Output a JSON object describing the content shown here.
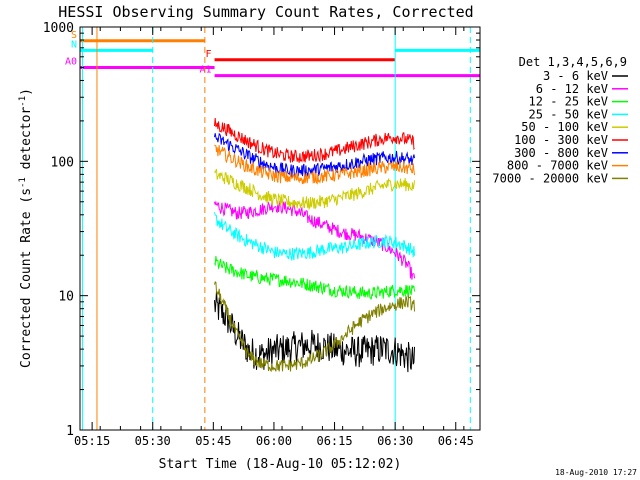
{
  "chart_data": {
    "type": "line",
    "title": "HESSI Observing Summary Count Rates, Corrected",
    "xlabel": "Start Time (18-Aug-10 05:12:02)",
    "ylabel_main": "Corrected Count Rate (s",
    "ylabel_sup1": "-1",
    "ylabel_mid": " detector",
    "ylabel_sup2": "-1",
    "ylabel_end": ")",
    "y_scale": "log",
    "ylim": [
      1,
      1000
    ],
    "xlim": [
      5.2,
      6.85
    ],
    "x_tick_labels": [
      "05:15",
      "05:30",
      "05:45",
      "06:00",
      "06:15",
      "06:30",
      "06:45"
    ],
    "x_ticks": [
      5.25,
      5.5,
      5.75,
      6.0,
      6.25,
      6.5,
      6.75
    ],
    "y_tick_labels": [
      "1",
      "10",
      "100",
      "1000"
    ],
    "y_ticks": [
      1,
      10,
      100,
      1000
    ],
    "legend_title": "Det 1,3,4,5,6,9",
    "legend_placement": "right",
    "timestamp": "18-Aug-2010 17:27",
    "series": [
      {
        "name": "3 - 6 keV",
        "color": "#000000",
        "x": [
          5.755,
          5.8,
          5.85,
          5.9,
          5.95,
          6.0,
          6.05,
          6.1,
          6.15,
          6.2,
          6.25,
          6.3,
          6.35,
          6.4,
          6.45,
          6.5,
          6.55,
          6.58
        ],
        "y": [
          8.5,
          7,
          5,
          3.8,
          3.6,
          3.9,
          4,
          4.2,
          4.3,
          4.2,
          4,
          3.9,
          3.8,
          3.9,
          4,
          3.9,
          3.5,
          3.2
        ]
      },
      {
        "name": "6 - 12 keV",
        "color": "#ff00ff",
        "x": [
          5.755,
          5.8,
          5.85,
          5.9,
          5.95,
          6.0,
          6.05,
          6.1,
          6.15,
          6.2,
          6.25,
          6.3,
          6.35,
          6.4,
          6.45,
          6.5,
          6.55,
          6.58
        ],
        "y": [
          48,
          44,
          41,
          42,
          44,
          47,
          45,
          42,
          37,
          34,
          31,
          29,
          28,
          26,
          24,
          21,
          17,
          13
        ]
      },
      {
        "name": "12 - 25 keV",
        "color": "#00ff00",
        "x": [
          5.755,
          5.8,
          5.85,
          5.9,
          5.95,
          6.0,
          6.05,
          6.1,
          6.15,
          6.2,
          6.25,
          6.3,
          6.35,
          6.4,
          6.45,
          6.5,
          6.55,
          6.58
        ],
        "y": [
          18,
          16,
          15,
          14,
          13.5,
          13.2,
          13,
          12.5,
          12,
          11.5,
          11,
          10.8,
          10.5,
          10.4,
          10.6,
          11,
          11,
          10.5
        ]
      },
      {
        "name": "25 - 50 keV",
        "color": "#00ffff",
        "x": [
          5.755,
          5.8,
          5.85,
          5.9,
          5.95,
          6.0,
          6.05,
          6.1,
          6.15,
          6.2,
          6.25,
          6.3,
          6.35,
          6.4,
          6.45,
          6.5,
          6.55,
          6.58
        ],
        "y": [
          38,
          32,
          28,
          25,
          23,
          21,
          20.5,
          20.5,
          21,
          22,
          22.5,
          23,
          24,
          25,
          25.5,
          25,
          23,
          21
        ]
      },
      {
        "name": "50 - 100 keV",
        "color": "#cccc00",
        "x": [
          5.755,
          5.8,
          5.85,
          5.9,
          5.95,
          6.0,
          6.05,
          6.1,
          6.15,
          6.2,
          6.25,
          6.3,
          6.35,
          6.4,
          6.45,
          6.5,
          6.55,
          6.58
        ],
        "y": [
          80,
          75,
          68,
          62,
          56,
          52,
          50,
          49,
          49,
          50,
          52,
          55,
          58,
          62,
          66,
          68,
          67,
          65
        ]
      },
      {
        "name": "100 - 300 keV",
        "color": "#ff0000",
        "x": [
          5.755,
          5.8,
          5.85,
          5.9,
          5.95,
          6.0,
          6.05,
          6.1,
          6.15,
          6.2,
          6.25,
          6.3,
          6.35,
          6.4,
          6.45,
          6.5,
          6.55,
          6.58
        ],
        "y": [
          190,
          175,
          155,
          138,
          125,
          115,
          110,
          108,
          110,
          113,
          118,
          125,
          133,
          140,
          148,
          152,
          145,
          138
        ]
      },
      {
        "name": "300 - 800 keV",
        "color": "#0000ff",
        "x": [
          5.755,
          5.8,
          5.85,
          5.9,
          5.95,
          6.0,
          6.05,
          6.1,
          6.15,
          6.2,
          6.25,
          6.3,
          6.35,
          6.4,
          6.45,
          6.5,
          6.55,
          6.58
        ],
        "y": [
          150,
          138,
          122,
          108,
          98,
          90,
          86,
          85,
          86,
          88,
          91,
          95,
          99,
          103,
          106,
          107,
          104,
          100
        ]
      },
      {
        "name": "800 - 7000 keV",
        "color": "#ff8000",
        "x": [
          5.755,
          5.8,
          5.85,
          5.9,
          5.95,
          6.0,
          6.05,
          6.1,
          6.15,
          6.2,
          6.25,
          6.3,
          6.35,
          6.4,
          6.45,
          6.5,
          6.55,
          6.58
        ],
        "y": [
          125,
          112,
          100,
          90,
          83,
          78,
          76,
          75,
          76,
          77,
          79,
          81,
          84,
          87,
          90,
          91,
          89,
          86
        ]
      },
      {
        "name": "7000 - 20000 keV",
        "color": "#808000",
        "x": [
          5.755,
          5.8,
          5.85,
          5.9,
          5.95,
          6.0,
          6.05,
          6.1,
          6.15,
          6.2,
          6.25,
          6.3,
          6.35,
          6.4,
          6.45,
          6.5,
          6.55,
          6.58
        ],
        "y": [
          12,
          8,
          5,
          3.5,
          3.1,
          3.0,
          3.0,
          3.1,
          3.3,
          3.7,
          4.3,
          5.2,
          6.3,
          7.2,
          8,
          8.6,
          9,
          8.5
        ]
      }
    ],
    "flag_bars": [
      {
        "label": "S",
        "color": "#ff8000",
        "x_start": 5.2,
        "x_end": 5.715,
        "y": 790
      },
      {
        "label": "N",
        "color": "#00ffff",
        "x_start": 5.2,
        "x_end": 5.5,
        "y": 670
      },
      {
        "label": "",
        "color": "#00ffff",
        "x_start": 6.5,
        "x_end": 6.85,
        "y": 670
      },
      {
        "label": "F",
        "color": "#ff0000",
        "x_start": 5.755,
        "x_end": 6.5,
        "y": 570
      },
      {
        "label": "A0",
        "color": "#ff00ff",
        "x_start": 5.2,
        "x_end": 5.755,
        "y": 500
      },
      {
        "label": "A1",
        "color": "#ff00ff",
        "x_start": 5.755,
        "x_end": 6.85,
        "y": 435
      }
    ],
    "vlines": [
      {
        "x": 5.21,
        "color": "#00ffff",
        "style": "solid"
      },
      {
        "x": 5.27,
        "color": "#ff8000",
        "style": "solid"
      },
      {
        "x": 5.5,
        "color": "#00ffff",
        "style": "dashed"
      },
      {
        "x": 5.715,
        "color": "#ff8000",
        "style": "dashed"
      },
      {
        "x": 6.5,
        "color": "#00ffff",
        "style": "solid"
      },
      {
        "x": 6.81,
        "color": "#00ffff",
        "style": "dashed"
      }
    ]
  }
}
